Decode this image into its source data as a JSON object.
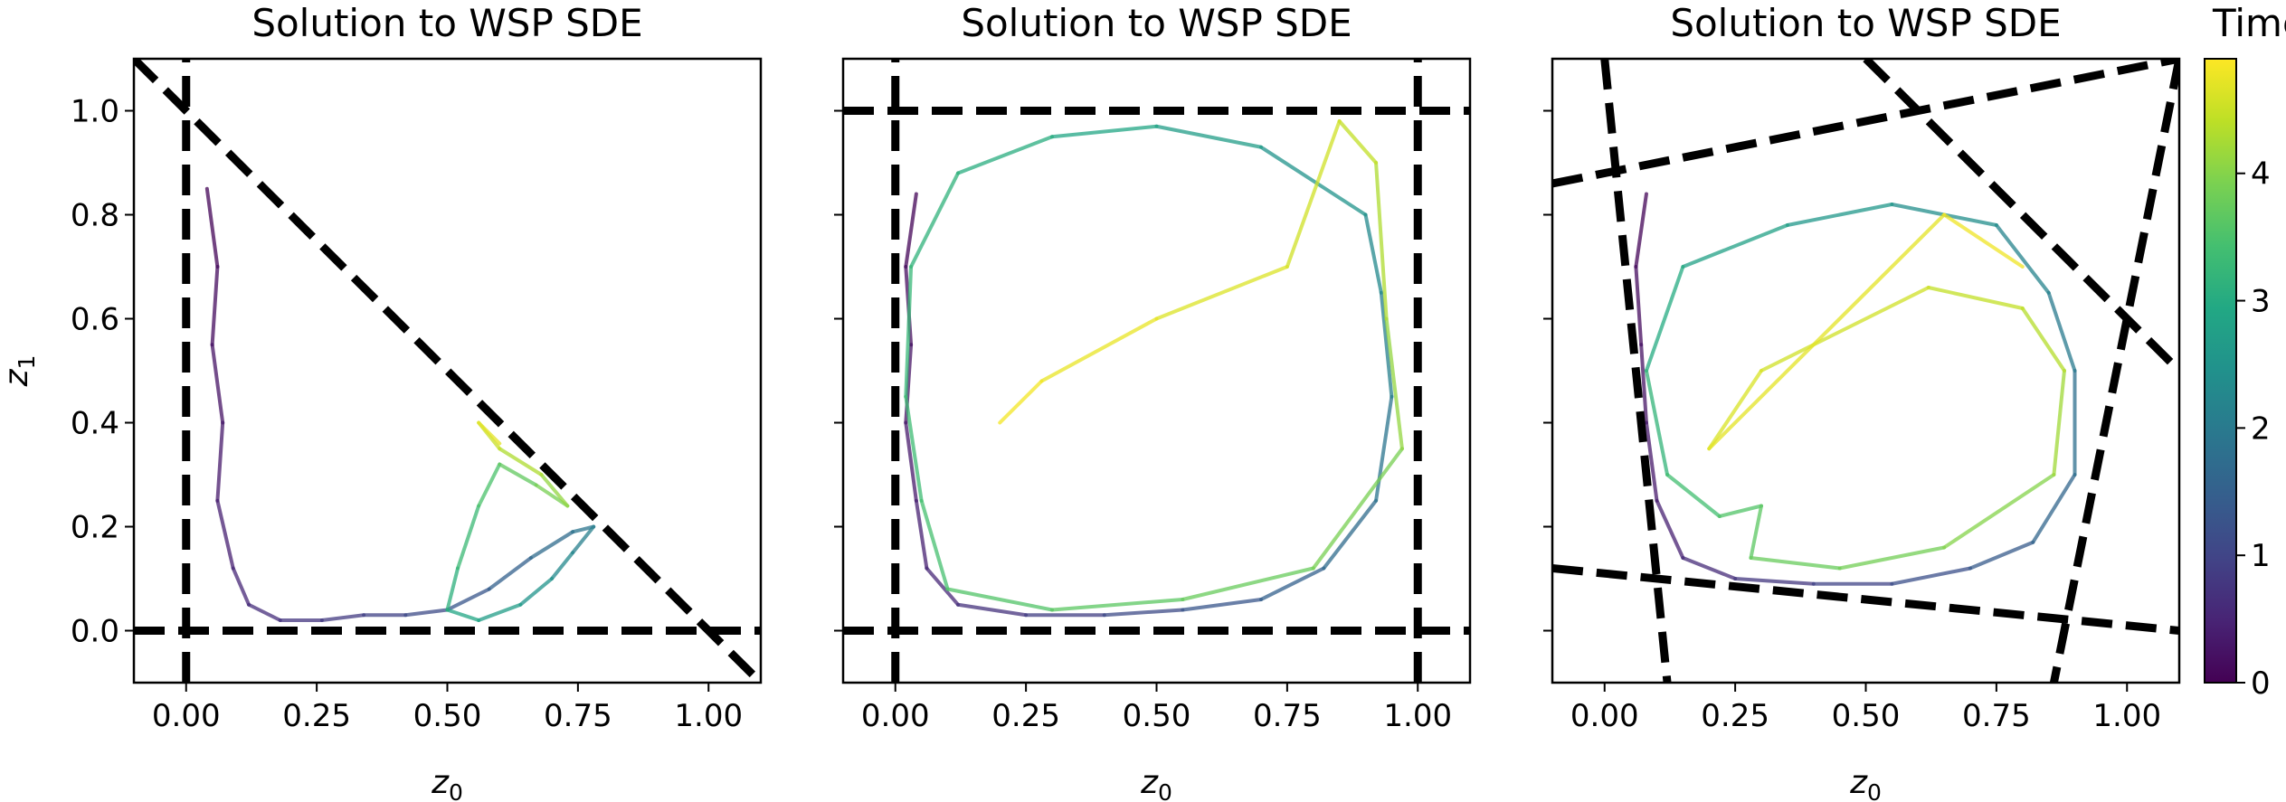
{
  "chart_data": {
    "panels": [
      {
        "type": "line",
        "title": "Solution to WSP SDE",
        "xlabel_base": "z",
        "xlabel_sub": "0",
        "ylabel_base": "z",
        "ylabel_sub": "1",
        "xlim": [
          -0.1,
          1.1
        ],
        "ylim": [
          -0.1,
          1.1
        ],
        "xticks": [
          0.0,
          0.25,
          0.5,
          0.75,
          1.0
        ],
        "xtick_labels": [
          "0.00",
          "0.25",
          "0.50",
          "0.75",
          "1.00"
        ],
        "yticks": [
          0.0,
          0.2,
          0.4,
          0.6,
          0.8,
          1.0
        ],
        "ytick_labels": [
          "0.0",
          "0.2",
          "0.4",
          "0.6",
          "0.8",
          "1.0"
        ],
        "show_ytick_labels": true,
        "boundaries": [
          [
            [
              0,
              -0.1
            ],
            [
              0,
              1.1
            ]
          ],
          [
            [
              -0.1,
              0
            ],
            [
              1.1,
              0
            ]
          ],
          [
            [
              -0.1,
              1.1
            ],
            [
              1.1,
              -0.1
            ]
          ]
        ],
        "trajectory": [
          [
            0.04,
            0.85,
            0.0
          ],
          [
            0.06,
            0.7,
            0.1
          ],
          [
            0.05,
            0.55,
            0.2
          ],
          [
            0.07,
            0.4,
            0.3
          ],
          [
            0.06,
            0.25,
            0.4
          ],
          [
            0.09,
            0.12,
            0.5
          ],
          [
            0.12,
            0.05,
            0.6
          ],
          [
            0.18,
            0.02,
            0.7
          ],
          [
            0.26,
            0.02,
            0.8
          ],
          [
            0.34,
            0.03,
            0.9
          ],
          [
            0.42,
            0.03,
            1.0
          ],
          [
            0.5,
            0.04,
            1.2
          ],
          [
            0.58,
            0.08,
            1.4
          ],
          [
            0.66,
            0.14,
            1.6
          ],
          [
            0.74,
            0.19,
            1.8
          ],
          [
            0.78,
            0.2,
            2.0
          ],
          [
            0.74,
            0.15,
            2.2
          ],
          [
            0.7,
            0.1,
            2.4
          ],
          [
            0.64,
            0.05,
            2.6
          ],
          [
            0.56,
            0.02,
            2.8
          ],
          [
            0.5,
            0.04,
            3.0
          ],
          [
            0.52,
            0.12,
            3.2
          ],
          [
            0.56,
            0.24,
            3.4
          ],
          [
            0.6,
            0.32,
            3.6
          ],
          [
            0.67,
            0.28,
            3.8
          ],
          [
            0.73,
            0.24,
            4.0
          ],
          [
            0.68,
            0.3,
            4.2
          ],
          [
            0.6,
            0.35,
            4.4
          ],
          [
            0.56,
            0.4,
            4.6
          ],
          [
            0.6,
            0.36,
            4.8
          ]
        ]
      },
      {
        "type": "line",
        "title": "Solution to WSP SDE",
        "xlabel_base": "z",
        "xlabel_sub": "0",
        "xlim": [
          -0.1,
          1.1
        ],
        "ylim": [
          -0.1,
          1.1
        ],
        "xticks": [
          0.0,
          0.25,
          0.5,
          0.75,
          1.0
        ],
        "xtick_labels": [
          "0.00",
          "0.25",
          "0.50",
          "0.75",
          "1.00"
        ],
        "yticks": [
          0.0,
          0.2,
          0.4,
          0.6,
          0.8,
          1.0
        ],
        "show_ytick_labels": false,
        "boundaries": [
          [
            [
              0,
              -0.1
            ],
            [
              0,
              1.1
            ]
          ],
          [
            [
              1,
              -0.1
            ],
            [
              1,
              1.1
            ]
          ],
          [
            [
              -0.1,
              0
            ],
            [
              1.1,
              0
            ]
          ],
          [
            [
              -0.1,
              1
            ],
            [
              1.1,
              1
            ]
          ]
        ],
        "trajectory": [
          [
            0.04,
            0.84,
            0.0
          ],
          [
            0.02,
            0.7,
            0.1
          ],
          [
            0.03,
            0.55,
            0.2
          ],
          [
            0.02,
            0.4,
            0.3
          ],
          [
            0.04,
            0.25,
            0.4
          ],
          [
            0.06,
            0.12,
            0.5
          ],
          [
            0.12,
            0.05,
            0.6
          ],
          [
            0.25,
            0.03,
            0.8
          ],
          [
            0.4,
            0.03,
            1.0
          ],
          [
            0.55,
            0.04,
            1.2
          ],
          [
            0.7,
            0.06,
            1.4
          ],
          [
            0.82,
            0.12,
            1.6
          ],
          [
            0.92,
            0.25,
            1.8
          ],
          [
            0.95,
            0.45,
            2.0
          ],
          [
            0.93,
            0.65,
            2.2
          ],
          [
            0.9,
            0.8,
            2.4
          ],
          [
            0.7,
            0.93,
            2.6
          ],
          [
            0.5,
            0.97,
            2.8
          ],
          [
            0.3,
            0.95,
            3.0
          ],
          [
            0.12,
            0.88,
            3.1
          ],
          [
            0.03,
            0.7,
            3.2
          ],
          [
            0.02,
            0.45,
            3.3
          ],
          [
            0.05,
            0.25,
            3.4
          ],
          [
            0.1,
            0.08,
            3.5
          ],
          [
            0.3,
            0.04,
            3.6
          ],
          [
            0.55,
            0.06,
            3.7
          ],
          [
            0.8,
            0.12,
            3.8
          ],
          [
            0.97,
            0.35,
            4.0
          ],
          [
            0.94,
            0.6,
            4.2
          ],
          [
            0.92,
            0.9,
            4.4
          ],
          [
            0.85,
            0.98,
            4.5
          ],
          [
            0.75,
            0.7,
            4.6
          ],
          [
            0.5,
            0.6,
            4.7
          ],
          [
            0.28,
            0.48,
            4.8
          ],
          [
            0.2,
            0.4,
            4.85
          ]
        ]
      },
      {
        "type": "line",
        "title": "Solution to WSP SDE",
        "xlabel_base": "z",
        "xlabel_sub": "0",
        "xlim": [
          -0.1,
          1.1
        ],
        "ylim": [
          -0.1,
          1.1
        ],
        "xticks": [
          0.0,
          0.25,
          0.5,
          0.75,
          1.0
        ],
        "xtick_labels": [
          "0.00",
          "0.25",
          "0.50",
          "0.75",
          "1.00"
        ],
        "yticks": [
          0.0,
          0.2,
          0.4,
          0.6,
          0.8,
          1.0
        ],
        "show_ytick_labels": false,
        "boundaries": [
          [
            [
              -0.1,
              0.86
            ],
            [
              1.1,
              1.1
            ]
          ],
          [
            [
              -0.1,
              0.12
            ],
            [
              1.1,
              0.0
            ]
          ],
          [
            [
              0.0,
              1.1
            ],
            [
              0.12,
              -0.1
            ]
          ],
          [
            [
              1.1,
              1.1
            ],
            [
              0.86,
              -0.1
            ]
          ],
          [
            [
              0.5,
              1.1
            ],
            [
              1.1,
              0.5
            ]
          ]
        ],
        "trajectory": [
          [
            0.08,
            0.84,
            0.0
          ],
          [
            0.06,
            0.7,
            0.1
          ],
          [
            0.07,
            0.55,
            0.2
          ],
          [
            0.08,
            0.4,
            0.3
          ],
          [
            0.1,
            0.25,
            0.4
          ],
          [
            0.15,
            0.14,
            0.5
          ],
          [
            0.25,
            0.1,
            0.7
          ],
          [
            0.4,
            0.09,
            0.9
          ],
          [
            0.55,
            0.09,
            1.1
          ],
          [
            0.7,
            0.12,
            1.3
          ],
          [
            0.82,
            0.17,
            1.5
          ],
          [
            0.9,
            0.3,
            1.7
          ],
          [
            0.9,
            0.5,
            1.9
          ],
          [
            0.85,
            0.65,
            2.1
          ],
          [
            0.75,
            0.78,
            2.3
          ],
          [
            0.55,
            0.82,
            2.5
          ],
          [
            0.35,
            0.78,
            2.7
          ],
          [
            0.15,
            0.7,
            2.9
          ],
          [
            0.08,
            0.5,
            3.1
          ],
          [
            0.12,
            0.3,
            3.3
          ],
          [
            0.22,
            0.22,
            3.5
          ],
          [
            0.3,
            0.24,
            3.6
          ],
          [
            0.28,
            0.14,
            3.7
          ],
          [
            0.45,
            0.12,
            3.8
          ],
          [
            0.65,
            0.16,
            3.9
          ],
          [
            0.86,
            0.3,
            4.1
          ],
          [
            0.88,
            0.5,
            4.3
          ],
          [
            0.8,
            0.62,
            4.4
          ],
          [
            0.62,
            0.66,
            4.5
          ],
          [
            0.3,
            0.5,
            4.6
          ],
          [
            0.2,
            0.35,
            4.65
          ],
          [
            0.65,
            0.8,
            4.75
          ],
          [
            0.8,
            0.7,
            4.85
          ]
        ]
      }
    ],
    "colorbar": {
      "label": "Time",
      "colormap": "viridis",
      "range": [
        0,
        4.9
      ],
      "ticks": [
        0,
        1,
        2,
        3,
        4
      ],
      "tick_labels": [
        "0",
        "1",
        "2",
        "3",
        "4"
      ]
    }
  }
}
